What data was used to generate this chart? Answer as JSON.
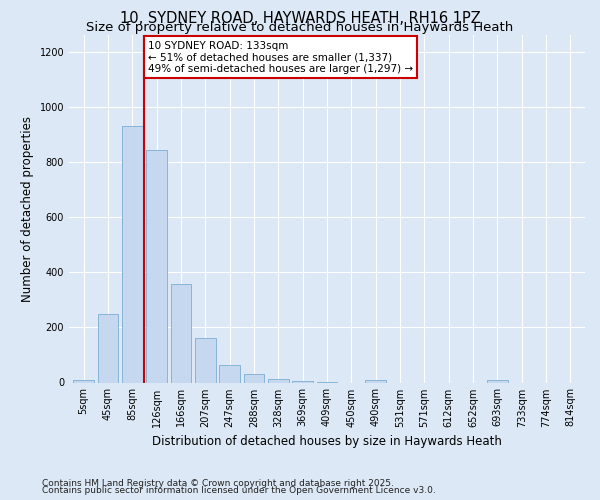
{
  "title1": "10, SYDNEY ROAD, HAYWARDS HEATH, RH16 1PZ",
  "title2": "Size of property relative to detached houses in Haywards Heath",
  "xlabel": "Distribution of detached houses by size in Haywards Heath",
  "ylabel": "Number of detached properties",
  "categories": [
    "5sqm",
    "45sqm",
    "85sqm",
    "126sqm",
    "166sqm",
    "207sqm",
    "247sqm",
    "288sqm",
    "328sqm",
    "369sqm",
    "409sqm",
    "450sqm",
    "490sqm",
    "531sqm",
    "571sqm",
    "612sqm",
    "652sqm",
    "693sqm",
    "733sqm",
    "774sqm",
    "814sqm"
  ],
  "values": [
    8,
    248,
    930,
    843,
    358,
    163,
    65,
    30,
    12,
    5,
    1,
    0,
    10,
    0,
    0,
    0,
    0,
    10,
    0,
    0,
    0
  ],
  "bar_color": "#c5d8f0",
  "bar_edge_color": "#7aadd4",
  "vline_x": 2.5,
  "vline_color": "#cc0000",
  "annotation_text": "10 SYDNEY ROAD: 133sqm\n← 51% of detached houses are smaller (1,337)\n49% of semi-detached houses are larger (1,297) →",
  "annotation_box_color": "#ffffff",
  "annotation_box_edge": "#cc0000",
  "ylim": [
    0,
    1260
  ],
  "yticks": [
    0,
    200,
    400,
    600,
    800,
    1000,
    1200
  ],
  "footer1": "Contains HM Land Registry data © Crown copyright and database right 2025.",
  "footer2": "Contains public sector information licensed under the Open Government Licence v3.0.",
  "bg_color": "#dce8f5",
  "plot_bg_color": "#dce8f5",
  "title_fontsize": 10.5,
  "subtitle_fontsize": 9.5,
  "axis_label_fontsize": 8.5,
  "tick_fontsize": 7,
  "footer_fontsize": 6.5,
  "annot_fontsize": 7.5
}
